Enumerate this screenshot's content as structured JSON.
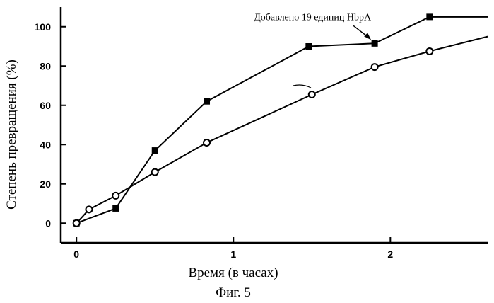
{
  "chart_data": {
    "type": "line",
    "title": "",
    "caption": "Фиг. 5",
    "xlabel": "Время (в часах)",
    "ylabel": "Степень превращения (%)",
    "xlim": [
      -0.1,
      2.62
    ],
    "ylim": [
      -10,
      110
    ],
    "xticks": [
      0,
      1,
      2
    ],
    "xtick_labels": [
      "0",
      "1",
      "2"
    ],
    "yticks": [
      0,
      20,
      40,
      60,
      80,
      100
    ],
    "ytick_labels": [
      "0",
      "20",
      "40",
      "60",
      "80",
      "100"
    ],
    "grid": false,
    "legend": "none",
    "series": [
      {
        "marker": "filled-square",
        "color": "#000000",
        "x": [
          0,
          0.25,
          0.5,
          0.83,
          1.48,
          1.9,
          2.25,
          2.62
        ],
        "y": [
          0,
          7.5,
          37,
          62,
          90,
          91.5,
          105,
          105
        ],
        "marked": [
          true,
          true,
          true,
          true,
          true,
          true,
          true,
          false
        ]
      },
      {
        "marker": "open-circle",
        "color": "#000000",
        "x": [
          0,
          0.08,
          0.25,
          0.5,
          0.83,
          1.5,
          1.9,
          2.25,
          2.62
        ],
        "y": [
          0,
          7,
          14,
          26,
          41,
          65.5,
          79.5,
          87.5,
          95
        ],
        "marked": [
          true,
          true,
          true,
          true,
          true,
          true,
          true,
          true,
          false
        ]
      }
    ],
    "annotations": [
      {
        "text": "Добавлено 19 единиц HbpA",
        "series": 0,
        "point": 5
      }
    ]
  }
}
